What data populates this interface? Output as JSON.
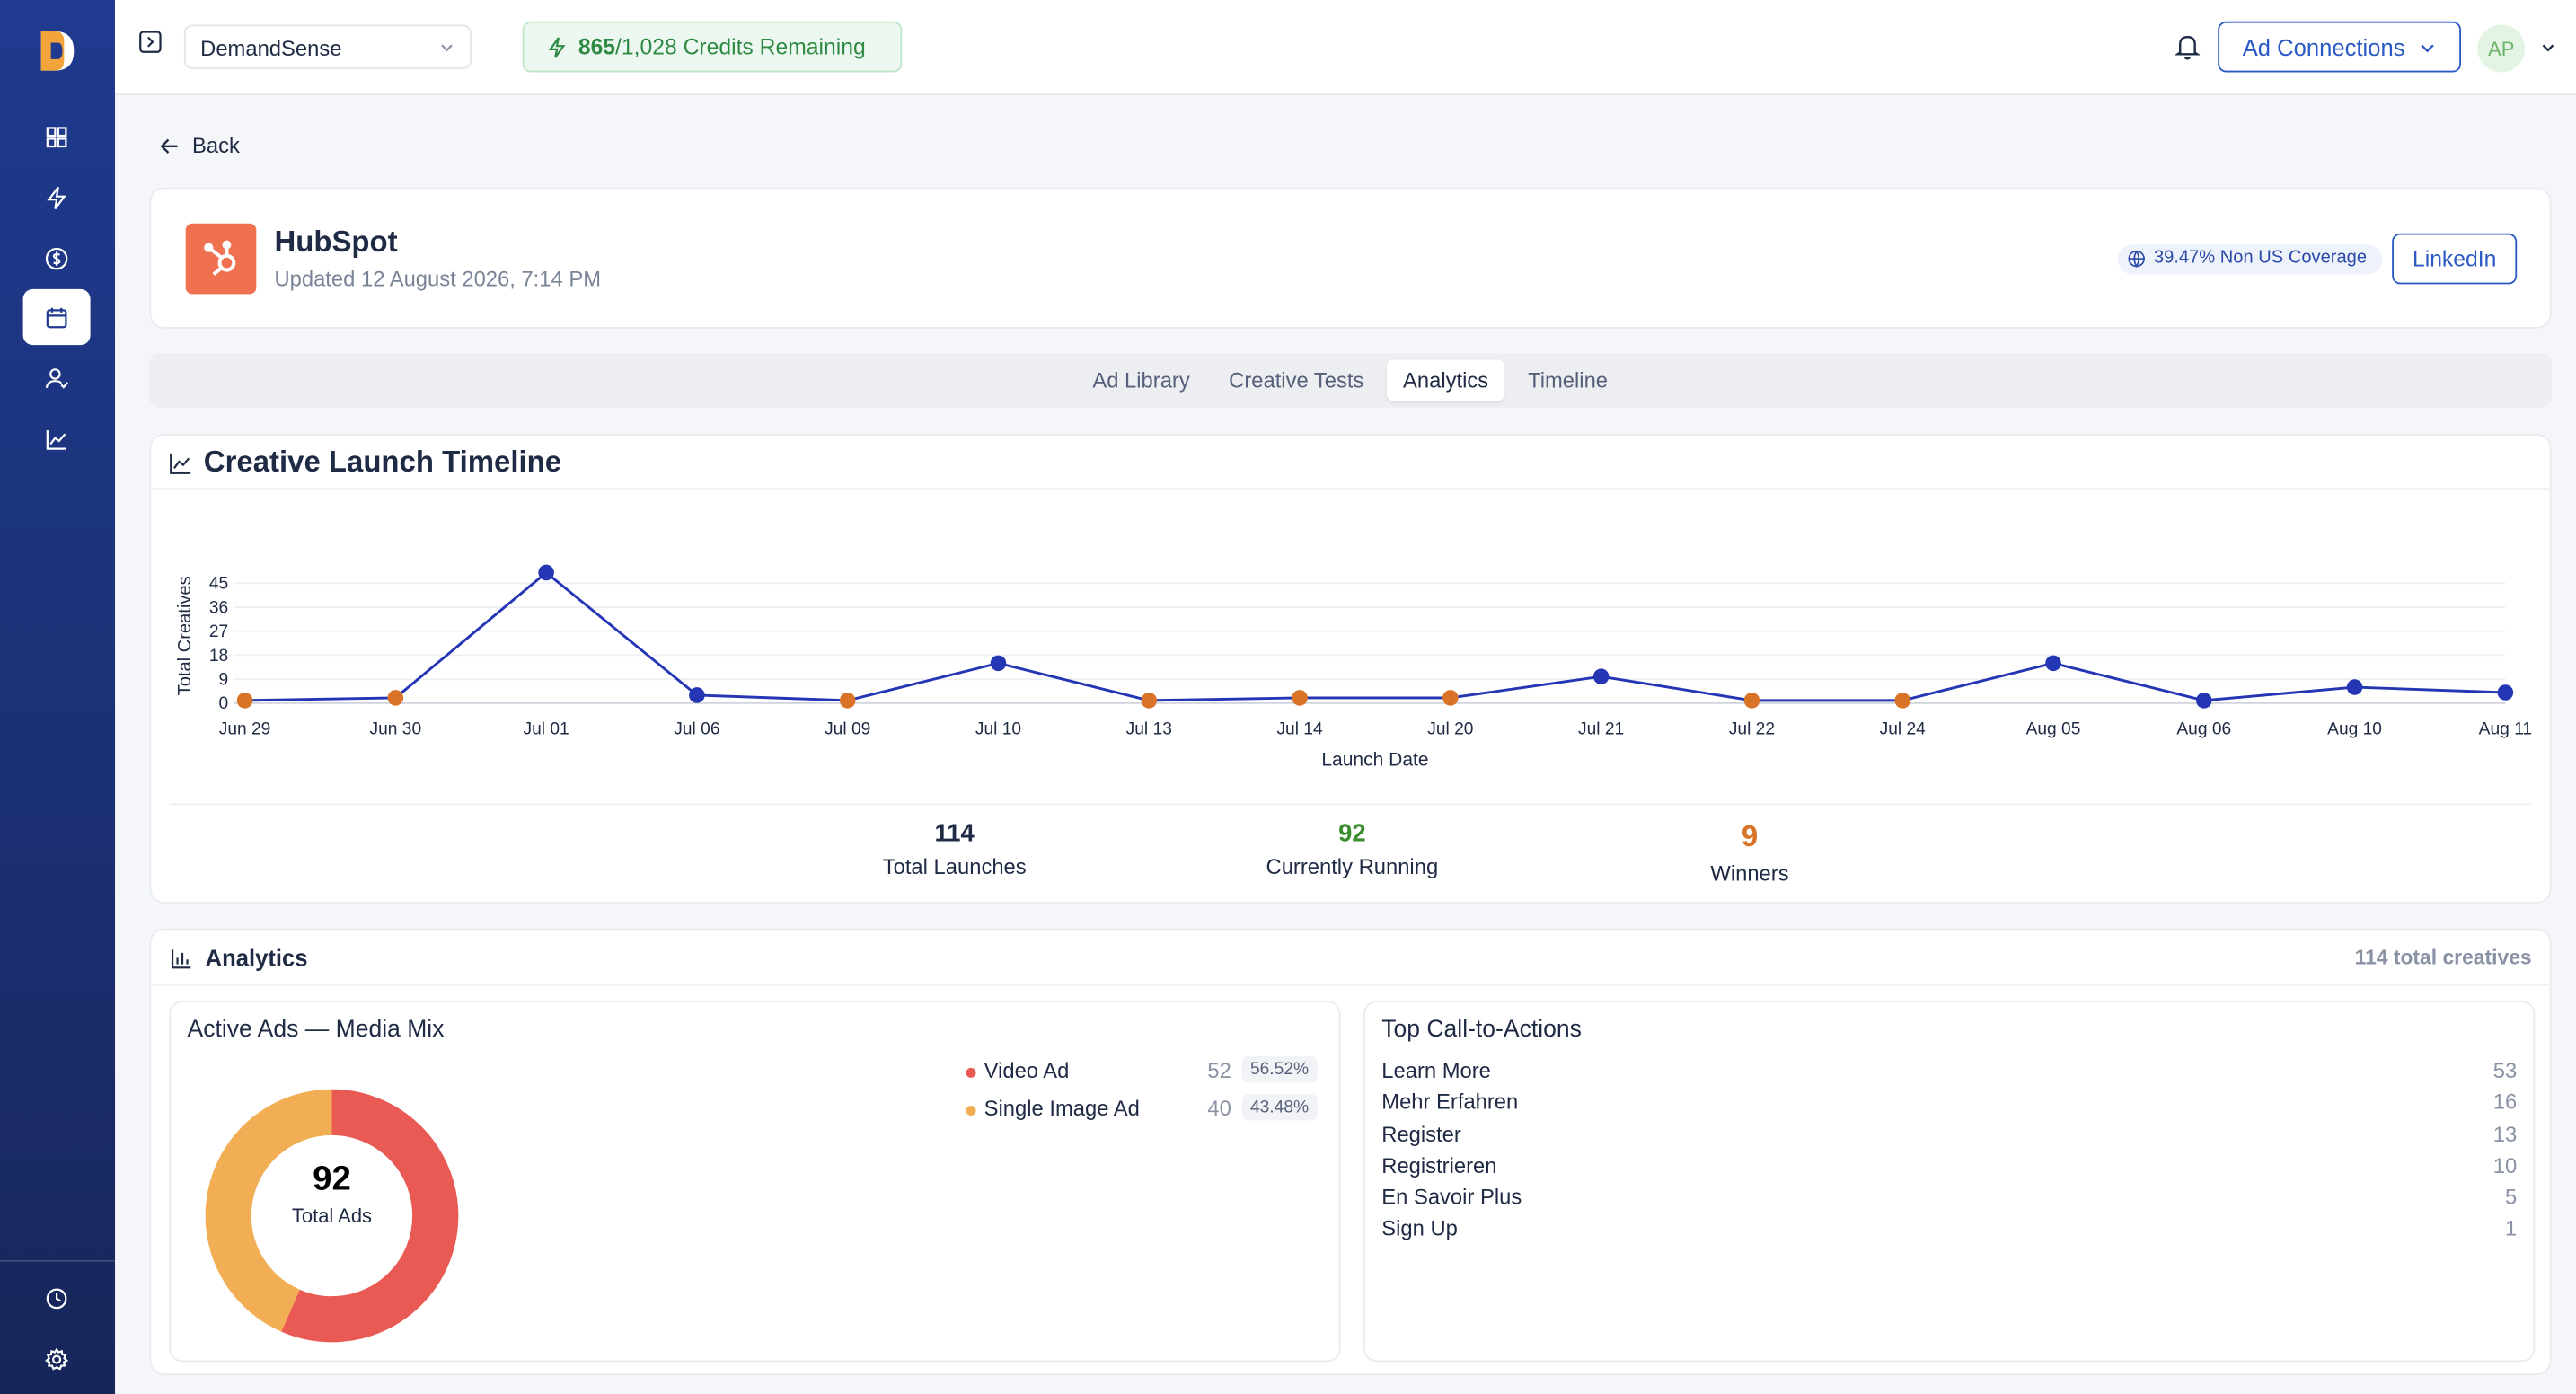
{
  "app": {
    "workspace": "DemandSense",
    "credits_used": "865",
    "credits_total": "/1,028 Credits Remaining",
    "ad_connections_label": "Ad Connections",
    "avatar_initials": "AP",
    "accent_color": "#2b59c3"
  },
  "sidebar": {
    "items": [
      {
        "icon": "grid-icon"
      },
      {
        "icon": "bolt-icon"
      },
      {
        "icon": "dollar-icon"
      },
      {
        "icon": "calendar-icon",
        "active": true
      },
      {
        "icon": "users-icon"
      },
      {
        "icon": "line-chart-icon"
      }
    ],
    "bottom_items": [
      {
        "icon": "history-icon"
      },
      {
        "icon": "settings-icon"
      }
    ]
  },
  "back_label": "Back",
  "company": {
    "name": "HubSpot",
    "updated": "Updated 12 August 2026, 7:14 PM",
    "coverage": "39.47% Non US Coverage",
    "linkedin_label": "LinkedIn",
    "logo_color": "#f0714f"
  },
  "tabs": [
    {
      "label": "Ad Library",
      "active": false
    },
    {
      "label": "Creative Tests",
      "active": false
    },
    {
      "label": "Analytics",
      "active": true
    },
    {
      "label": "Timeline",
      "active": false
    }
  ],
  "timeline": {
    "title": "Creative Launch Timeline",
    "stats": [
      {
        "value": "114",
        "label": "Total Launches",
        "color": "#1f2a44"
      },
      {
        "value": "92",
        "label": "Currently Running",
        "color": "#3a8c2e"
      },
      {
        "value": "9",
        "label": "Winners",
        "color": "#d97328"
      }
    ]
  },
  "chart_data": {
    "type": "line",
    "xlabel": "Launch Date",
    "ylabel": "Total Creatives",
    "ylim": [
      0,
      45
    ],
    "yticks": [
      0,
      9,
      18,
      27,
      36,
      45
    ],
    "grid": true,
    "categories": [
      "Jun 29",
      "Jun 30",
      "Jul 01",
      "Jul 06",
      "Jul 09",
      "Jul 10",
      "Jul 13",
      "Jul 14",
      "Jul 20",
      "Jul 21",
      "Jul 22",
      "Jul 24",
      "Aug 05",
      "Aug 06",
      "Aug 10",
      "Aug 11"
    ],
    "series": [
      {
        "values": [
          1,
          2,
          49,
          3,
          1,
          15,
          1,
          2,
          2,
          10,
          1,
          1,
          15,
          1,
          6,
          4
        ]
      }
    ],
    "point_colors": [
      "#d97328",
      "#d97328",
      "#2536b5",
      "#2536b5",
      "#d97328",
      "#2536b5",
      "#d97328",
      "#d97328",
      "#d97328",
      "#2536b5",
      "#d97328",
      "#d97328",
      "#2536b5",
      "#2536b5",
      "#2536b5",
      "#2536b5"
    ],
    "line_color": "#2536b5"
  },
  "analytics": {
    "title": "Analytics",
    "total_creatives": "114 total creatives",
    "media_mix": {
      "title": "Active Ads — Media Mix",
      "total": "92",
      "total_label": "Total Ads",
      "items": [
        {
          "label": "Video Ad",
          "count": "52",
          "pct": "56.52%",
          "fraction": 0.5652,
          "color": "#ea5a55"
        },
        {
          "label": "Single Image Ad",
          "count": "40",
          "pct": "43.48%",
          "fraction": 0.4348,
          "color": "#f2ae55"
        }
      ]
    },
    "cta": {
      "title": "Top Call-to-Actions",
      "items": [
        {
          "label": "Learn More",
          "count": "53"
        },
        {
          "label": "Mehr Erfahren",
          "count": "16"
        },
        {
          "label": "Register",
          "count": "13"
        },
        {
          "label": "Registrieren",
          "count": "10"
        },
        {
          "label": "En Savoir Plus",
          "count": "5"
        },
        {
          "label": "Sign Up",
          "count": "1"
        }
      ]
    }
  }
}
